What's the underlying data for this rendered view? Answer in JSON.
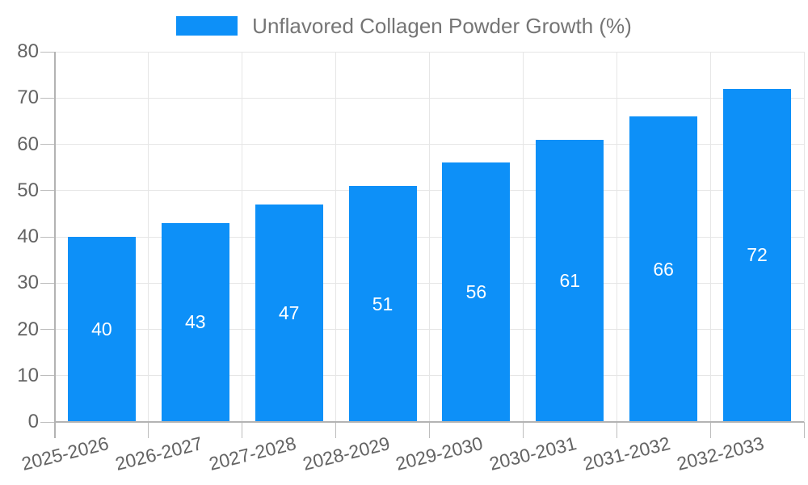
{
  "chart_data": {
    "type": "bar",
    "title": "Unflavored Collagen Powder Growth (%)",
    "categories": [
      "2025-2026",
      "2026-2027",
      "2027-2028",
      "2028-2029",
      "2029-2030",
      "2030-2031",
      "2031-2032",
      "2032-2033"
    ],
    "series": [
      {
        "name": "Unflavored Collagen Powder Growth (%)",
        "values": [
          40,
          43,
          47,
          51,
          56,
          61,
          66,
          72
        ]
      }
    ],
    "xlabel": "",
    "ylabel": "",
    "ylim": [
      0,
      80
    ],
    "ytick_step": 10,
    "ytick_labels": [
      "0",
      "10",
      "20",
      "30",
      "40",
      "50",
      "60",
      "70",
      "80"
    ],
    "grid": true,
    "legend_position": "top",
    "value_labels_shown_inside_bars": true
  },
  "colors": {
    "bar": "#0d90f8",
    "grid_line": "#e6e6e6",
    "axis_line": "#b3b3b3",
    "tick_mark": "#bdbdbd",
    "axis_text": "#636363",
    "legend_text": "#757575",
    "value_label_text": "#ffffff",
    "background": "#ffffff"
  }
}
